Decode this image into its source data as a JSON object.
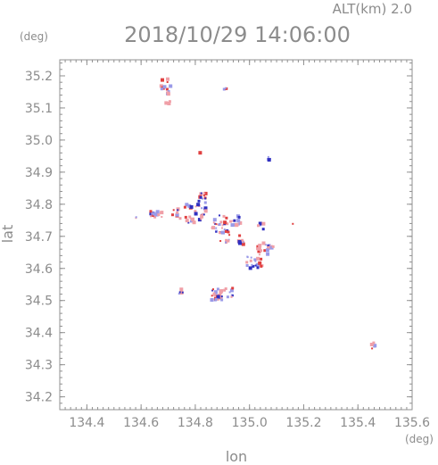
{
  "header": {
    "altitude_label": "ALT(km)  2.0",
    "datetime": "2018/10/29 14:06:00"
  },
  "chart_data": {
    "type": "scatter",
    "title": "2018/10/29 14:06:00",
    "subtitle": "ALT(km)  2.0",
    "xlabel": "lon",
    "ylabel": "lat",
    "x_unit": "(deg)",
    "y_unit": "(deg)",
    "xlim": [
      134.3,
      135.6
    ],
    "ylim": [
      34.16,
      35.25
    ],
    "x_ticks": [
      134.4,
      134.6,
      134.8,
      135.0,
      135.2,
      135.4,
      135.6
    ],
    "x_tick_labels": [
      "134.4",
      "134.6",
      "134.8",
      "135.0",
      "135.2",
      "135.4",
      "135.6"
    ],
    "y_ticks": [
      34.2,
      34.3,
      34.4,
      34.5,
      34.6,
      34.7,
      34.8,
      34.9,
      35.0,
      35.1,
      35.2
    ],
    "y_tick_labels": [
      "34.2",
      "34.3",
      "34.4",
      "34.5",
      "34.6",
      "34.7",
      "34.8",
      "34.9",
      "35.0",
      "35.1",
      "35.2"
    ],
    "grid": false,
    "colors": {
      "positive": "#f0a0a8",
      "negative": "#9a9ae8",
      "dark_blue": "#3030c0",
      "red": "#e04040"
    },
    "clusters": [
      {
        "lon": 134.69,
        "lat": 35.17,
        "w": 0.02,
        "h": 0.03,
        "n": 10
      },
      {
        "lon": 134.7,
        "lat": 35.13,
        "w": 0.015,
        "h": 0.02,
        "n": 6
      },
      {
        "lon": 134.91,
        "lat": 35.16,
        "w": 0.008,
        "h": 0.004,
        "n": 3
      },
      {
        "lon": 135.07,
        "lat": 34.94,
        "w": 0.008,
        "h": 0.008,
        "n": 4
      },
      {
        "lon": 134.83,
        "lat": 34.82,
        "w": 0.02,
        "h": 0.02,
        "n": 12
      },
      {
        "lon": 134.66,
        "lat": 34.77,
        "w": 0.03,
        "h": 0.01,
        "n": 16
      },
      {
        "lon": 134.73,
        "lat": 34.77,
        "w": 0.015,
        "h": 0.015,
        "n": 8
      },
      {
        "lon": 134.8,
        "lat": 34.77,
        "w": 0.04,
        "h": 0.03,
        "n": 30
      },
      {
        "lon": 134.89,
        "lat": 34.74,
        "w": 0.03,
        "h": 0.03,
        "n": 24
      },
      {
        "lon": 134.95,
        "lat": 34.75,
        "w": 0.02,
        "h": 0.015,
        "n": 12
      },
      {
        "lon": 134.91,
        "lat": 34.7,
        "w": 0.02,
        "h": 0.02,
        "n": 12
      },
      {
        "lon": 134.97,
        "lat": 34.69,
        "w": 0.015,
        "h": 0.015,
        "n": 8
      },
      {
        "lon": 135.04,
        "lat": 34.73,
        "w": 0.012,
        "h": 0.01,
        "n": 5
      },
      {
        "lon": 135.05,
        "lat": 34.66,
        "w": 0.025,
        "h": 0.02,
        "n": 18
      },
      {
        "lon": 135.02,
        "lat": 34.62,
        "w": 0.03,
        "h": 0.02,
        "n": 20
      },
      {
        "lon": 135.08,
        "lat": 34.66,
        "w": 0.015,
        "h": 0.01,
        "n": 6
      },
      {
        "lon": 134.75,
        "lat": 34.53,
        "w": 0.01,
        "h": 0.01,
        "n": 6
      },
      {
        "lon": 134.9,
        "lat": 34.52,
        "w": 0.04,
        "h": 0.02,
        "n": 26
      },
      {
        "lon": 134.88,
        "lat": 34.51,
        "w": 0.02,
        "h": 0.01,
        "n": 10
      },
      {
        "lon": 135.46,
        "lat": 34.36,
        "w": 0.01,
        "h": 0.01,
        "n": 6
      },
      {
        "lon": 134.58,
        "lat": 34.76,
        "w": 0.003,
        "h": 0.003,
        "n": 2
      },
      {
        "lon": 134.82,
        "lat": 34.96,
        "w": 0.002,
        "h": 0.002,
        "n": 1
      },
      {
        "lon": 135.16,
        "lat": 34.74,
        "w": 0.004,
        "h": 0.002,
        "n": 1
      }
    ]
  }
}
